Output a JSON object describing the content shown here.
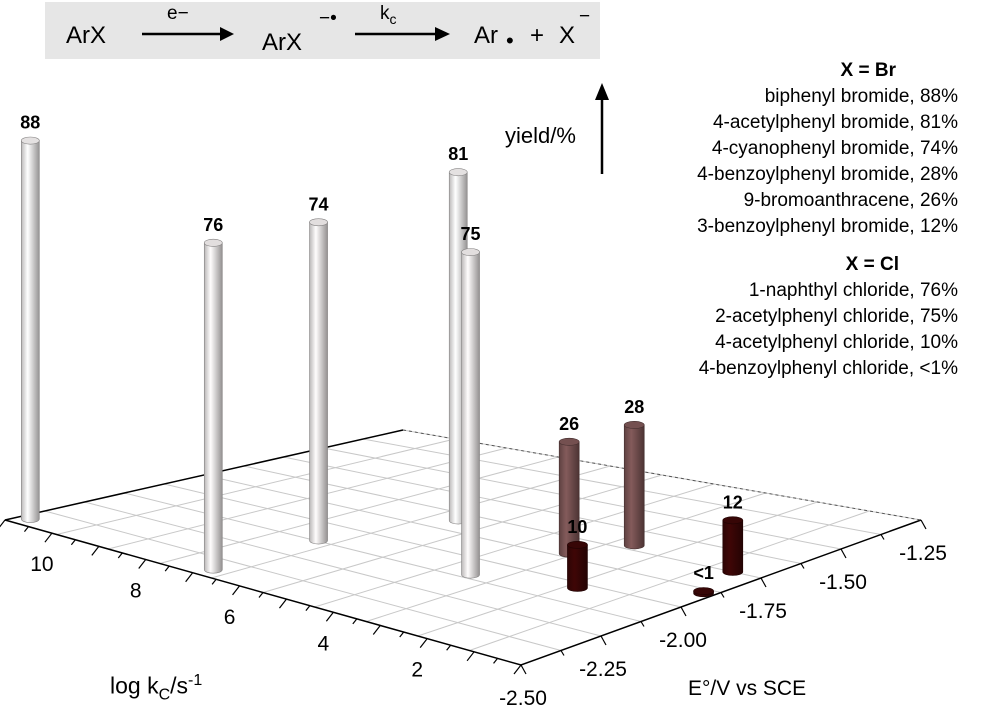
{
  "scheme": {
    "reactant": "ArX",
    "arrow1_label": "e−",
    "intermediate": "ArX",
    "intermediate_charge": "−•",
    "arrow2_label": "k",
    "arrow2_sub": "c",
    "product1": "Ar",
    "radical_dot": "•",
    "plus": "+",
    "product2": "X",
    "product2_charge": "−"
  },
  "yield_axis_label": "yield/%",
  "legend": {
    "br_header": "X = Br",
    "br_items": [
      "biphenyl bromide, 88%",
      "4-acetylphenyl bromide, 81%",
      "4-cyanophenyl bromide, 74%",
      "4-benzoylphenyl bromide, 28%",
      "9-bromoanthracene, 26%",
      "3-benzoylphenyl bromide, 12%"
    ],
    "cl_header": "X = Cl",
    "cl_items": [
      "1-naphthyl chloride, 76%",
      "2-acetylphenyl chloride, 75%",
      "4-acetylphenyl chloride, 10%",
      "4-benzoylphenyl chloride, <1%"
    ]
  },
  "axes": {
    "x_label_main": "log k",
    "x_label_sub": "C",
    "x_label_tail": "/s",
    "x_label_sup": "-1",
    "y_label": "E°/V vs SCE"
  },
  "chart_data": {
    "type": "bar3d",
    "x_axis": {
      "label": "log kC/s-1",
      "ticks": [
        10,
        8,
        6,
        4,
        2
      ],
      "range": [
        0,
        11
      ]
    },
    "y_axis": {
      "label": "E°/V vs SCE",
      "ticks": [
        -2.5,
        -2.25,
        -2.0,
        -1.75,
        -1.5,
        -1.25
      ],
      "tick_labels": [
        "-2.50",
        "-2.25",
        "-2.00",
        "-1.75",
        "-1.50",
        "-1.25"
      ],
      "range": [
        -2.5,
        -1.25
      ]
    },
    "z_axis": {
      "label": "yield/%",
      "range": [
        0,
        100
      ]
    },
    "bars": [
      {
        "label": "88",
        "value": 88,
        "log_kc": 10.8,
        "E": -2.45,
        "color": "#f0eded",
        "series": "X = Br"
      },
      {
        "label": "76",
        "value": 76,
        "log_kc": 6.9,
        "E": -2.45,
        "color": "#eeeaea",
        "series": "X = Cl"
      },
      {
        "label": "74",
        "value": 74,
        "log_kc": 6.9,
        "E": -2.12,
        "color": "#eeeaea",
        "series": "X = Br"
      },
      {
        "label": "81",
        "value": 81,
        "log_kc": 6.1,
        "E": -1.8,
        "color": "#f0eded",
        "series": "X = Br"
      },
      {
        "label": "75",
        "value": 75,
        "log_kc": 3.8,
        "E": -2.1,
        "color": "#eeeaea",
        "series": "X = Cl"
      },
      {
        "label": "26",
        "value": 26,
        "log_kc": 3.4,
        "E": -1.85,
        "color": "#7a5454",
        "series": "X = Br"
      },
      {
        "label": "28",
        "value": 28,
        "log_kc": 2.9,
        "E": -1.72,
        "color": "#7a5454",
        "series": "X = Br"
      },
      {
        "label": "10",
        "value": 10,
        "log_kc": 2.0,
        "E": -2.03,
        "color": "#3a0606",
        "series": "X = Cl"
      },
      {
        "label": "12",
        "value": 12,
        "log_kc": 0.6,
        "E": -1.75,
        "color": "#3a0606",
        "series": "X = Br"
      },
      {
        "label": "<1",
        "value": 0.5,
        "log_kc": 0.2,
        "E": -1.9,
        "color": "#3a0606",
        "series": "X = Cl"
      }
    ],
    "grid": true
  }
}
